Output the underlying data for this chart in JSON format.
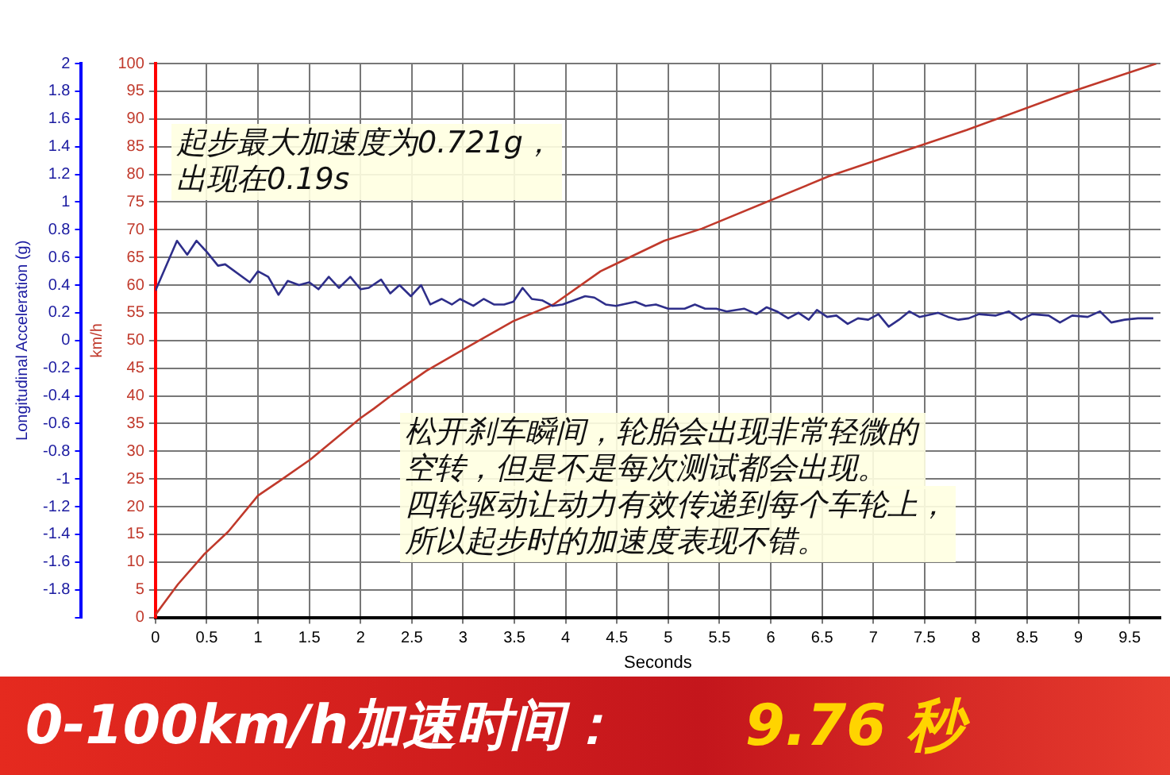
{
  "chart_data": {
    "type": "line",
    "title": "0-100km/h加速时间：",
    "subtitle": "9.76 秒",
    "xlabel": "Seconds",
    "ylabel": "Longitudinal Acceleration (g)",
    "y2label": "km/h",
    "annotations": [
      "起步最大加速度为0.721g，出现在0.19s",
      "松开刹车瞬间，轮胎会出现非常轻微的空转，但是不是每次测试都会出现。",
      "四轮驱动让动力有效传递到每个车轮上，所以起步时的加速度表现不错。"
    ],
    "xlim": [
      0,
      9.8
    ],
    "xticks": [
      0,
      0.5,
      1,
      1.5,
      2,
      2.5,
      3,
      3.5,
      4,
      4.5,
      5,
      5.5,
      6,
      6.5,
      7,
      7.5,
      8,
      8.5,
      9,
      9.5
    ],
    "ylim": [
      -2,
      2
    ],
    "yticks": [
      {
        "value": -2,
        "label": null
      },
      -1.8,
      -1.6,
      -1.4,
      -1.2,
      -1,
      -0.8,
      -0.6,
      -0.4,
      -0.2,
      0,
      0.2,
      0.4,
      0.6,
      0.8,
      1,
      1.2,
      1.4,
      1.6,
      1.8,
      2
    ],
    "y2lim": [
      0,
      100
    ],
    "y2ticks": [
      0,
      5,
      10,
      15,
      20,
      25,
      30,
      35,
      40,
      45,
      50,
      55,
      60,
      65,
      70,
      75,
      80,
      85,
      90,
      95,
      100
    ],
    "grid": true,
    "legend": false,
    "marker": "none",
    "line_style": "solid",
    "series": [
      {
        "color": "#2e2e8a",
        "x": [
          0,
          0.21,
          0.31,
          0.4,
          0.5,
          0.61,
          0.68,
          0.92,
          1.0,
          1.1,
          1.2,
          1.29,
          1.4,
          1.5,
          1.59,
          1.69,
          1.79,
          1.9,
          2.0,
          2.08,
          2.2,
          2.29,
          2.38,
          2.49,
          2.59,
          2.68,
          2.79,
          2.89,
          2.97,
          3.1,
          3.2,
          3.3,
          3.4,
          3.49,
          3.58,
          3.67,
          3.77,
          3.87,
          3.97,
          4.19,
          4.28,
          4.39,
          4.49,
          4.68,
          4.78,
          4.88,
          5.0,
          5.16,
          5.26,
          5.36,
          5.47,
          5.57,
          5.74,
          5.86,
          5.96,
          6.06,
          6.17,
          6.27,
          6.37,
          6.45,
          6.55,
          6.64,
          6.75,
          6.85,
          6.95,
          7.05,
          7.15,
          7.25,
          7.35,
          7.45,
          7.63,
          7.73,
          7.83,
          7.93,
          8.03,
          8.19,
          8.32,
          8.44,
          8.55,
          8.71,
          8.82,
          8.94,
          9.09,
          9.21,
          9.32,
          9.45,
          9.58,
          9.73
        ],
        "values": [
          0.36,
          0.72,
          0.62,
          0.72,
          0.64,
          0.54,
          0.55,
          0.42,
          0.5,
          0.46,
          0.33,
          0.43,
          0.4,
          0.42,
          0.37,
          0.46,
          0.38,
          0.46,
          0.37,
          0.38,
          0.44,
          0.34,
          0.4,
          0.32,
          0.4,
          0.26,
          0.3,
          0.26,
          0.3,
          0.25,
          0.3,
          0.26,
          0.26,
          0.28,
          0.38,
          0.3,
          0.29,
          0.25,
          0.26,
          0.32,
          0.31,
          0.26,
          0.25,
          0.28,
          0.25,
          0.26,
          0.23,
          0.23,
          0.26,
          0.23,
          0.23,
          0.21,
          0.23,
          0.19,
          0.24,
          0.21,
          0.16,
          0.2,
          0.15,
          0.22,
          0.17,
          0.18,
          0.12,
          0.16,
          0.15,
          0.19,
          0.1,
          0.15,
          0.21,
          0.17,
          0.2,
          0.17,
          0.15,
          0.16,
          0.19,
          0.18,
          0.21,
          0.15,
          0.19,
          0.18,
          0.13,
          0.18,
          0.17,
          0.21,
          0.13,
          0.15,
          0.16,
          0.16
        ]
      },
      {
        "color": "#c0392b",
        "axis": "y2",
        "x": [
          0,
          0.22,
          0.48,
          0.71,
          1.0,
          1.2,
          1.51,
          2.0,
          2.13,
          2.33,
          2.64,
          3.06,
          3.49,
          3.88,
          4.34,
          4.96,
          5.33,
          6.56,
          7.91,
          8.88,
          9.76
        ],
        "values": [
          0.5,
          6,
          11.5,
          15.5,
          22,
          24.5,
          28.5,
          36,
          37.7,
          40.5,
          44.5,
          49,
          53.5,
          56.5,
          62.5,
          68,
          70.2,
          79.6,
          88,
          94.6,
          100
        ]
      }
    ]
  }
}
